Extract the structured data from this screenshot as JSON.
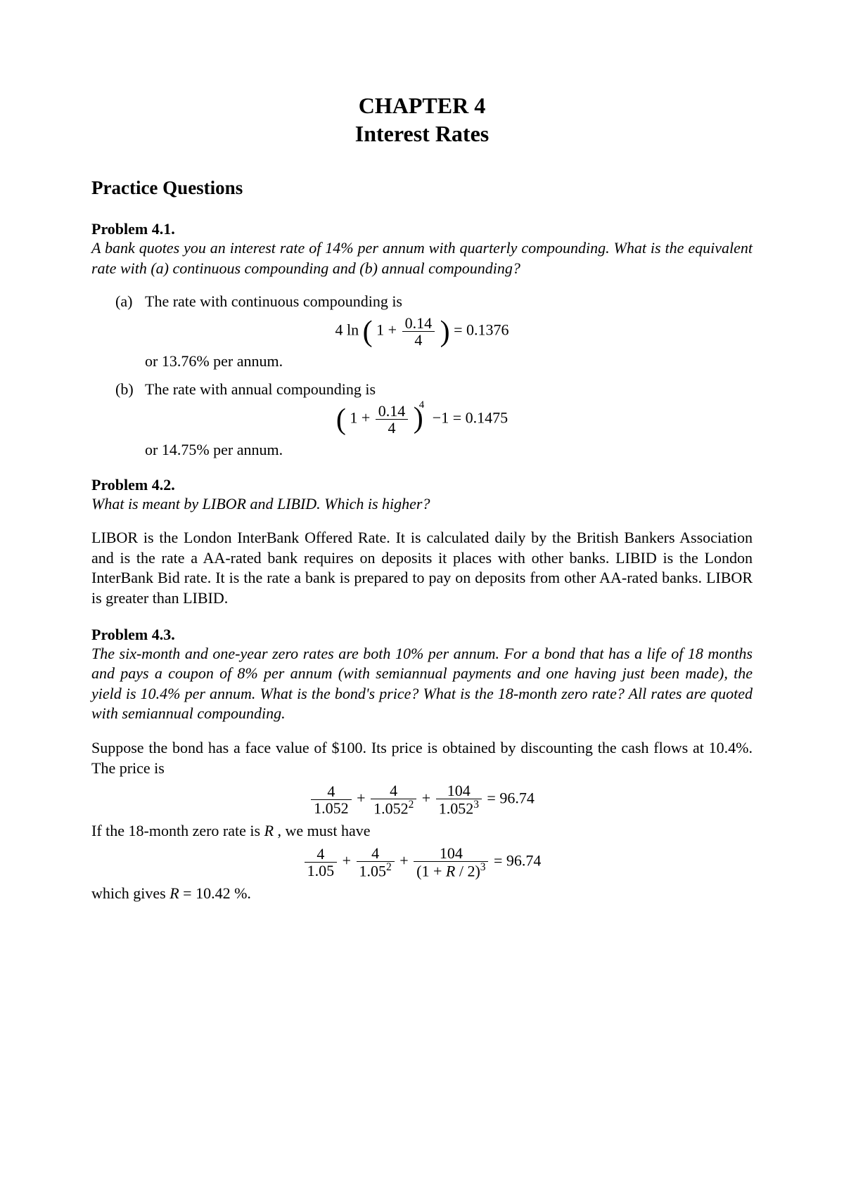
{
  "chapter_label": "CHAPTER 4",
  "chapter_title": "Interest Rates",
  "section_title": "Practice Questions",
  "p1": {
    "heading": "Problem 4.1.",
    "question": "A bank quotes you an interest rate of 14% per annum with quarterly compounding. What is the equivalent rate with (a) continuous compounding and (b) annual compounding?",
    "a_marker": "(a)",
    "a_intro": "The rate with continuous compounding is",
    "a_eq_prefix": "4 ln",
    "a_eq_inner_lead": "1 +",
    "a_frac_num": "0.14",
    "a_frac_den": "4",
    "a_eq_rhs": "= 0.1376",
    "a_conclusion": "or 13.76% per annum.",
    "b_marker": "(b)",
    "b_intro": "The rate with annual compounding is",
    "b_eq_inner_lead": "1 +",
    "b_frac_num": "0.14",
    "b_frac_den": "4",
    "b_exp": "4",
    "b_eq_rhs_a": "−1 = 0.1475",
    "b_conclusion": "or 14.75% per annum."
  },
  "p2": {
    "heading": "Problem 4.2.",
    "question": "What is meant by LIBOR and LIBID. Which is higher?",
    "answer": "LIBOR is the London InterBank Offered Rate. It is calculated daily by the British Bankers Association and is the rate a AA-rated bank requires on deposits it places with other banks. LIBID is the London InterBank Bid rate. It is the rate a bank is prepared to pay on deposits from other AA-rated banks. LIBOR is greater than LIBID."
  },
  "p3": {
    "heading": "Problem 4.3.",
    "question": "The six-month and one-year zero rates are both 10% per annum. For a bond that has a life of 18 months and pays a coupon of 8% per annum (with semiannual payments and one having just been made), the yield is 10.4% per annum. What is the bond's price? What is the 18-month zero rate? All rates are quoted with semiannual compounding.",
    "intro1": "Suppose the bond has a face value of $100. Its price is obtained by discounting the cash flows at 10.4%. The price is",
    "eq1_t1_num": "4",
    "eq1_t1_den": "1.052",
    "eq1_t2_num": "4",
    "eq1_t2_den_base": "1.052",
    "eq1_t2_den_exp": "2",
    "eq1_t3_num": "104",
    "eq1_t3_den_base": "1.052",
    "eq1_t3_den_exp": "3",
    "eq1_rhs": "= 96.74",
    "intro2a": "If the 18-month zero rate is ",
    "intro2b": "R",
    "intro2c": " , we must have",
    "eq2_t1_num": "4",
    "eq2_t1_den": "1.05",
    "eq2_t2_num": "4",
    "eq2_t2_den_base": "1.05",
    "eq2_t2_den_exp": "2",
    "eq2_t3_num": "104",
    "eq2_t3_den_prefix": "(1 + ",
    "eq2_t3_den_var": "R",
    "eq2_t3_den_suffix": " / 2)",
    "eq2_t3_den_exp": "3",
    "eq2_rhs": "= 96.74",
    "conclusion_a": "which gives   ",
    "conclusion_b": "R",
    "conclusion_c": " = 10.42 %."
  }
}
